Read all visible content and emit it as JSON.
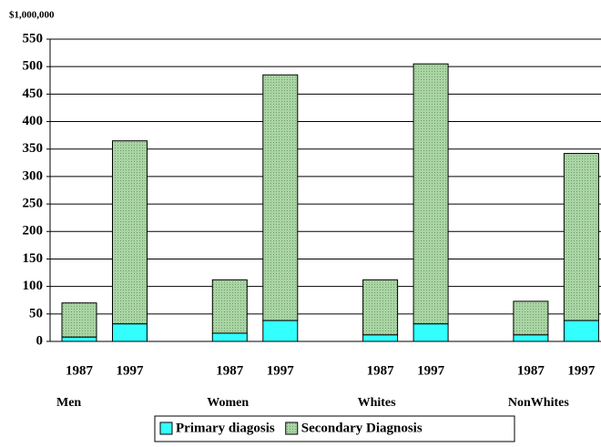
{
  "chart_data": {
    "type": "stacked-bar",
    "y_unit_label": "$1,000,000",
    "categories": [
      "1987",
      "1997",
      "1987",
      "1997",
      "1987",
      "1997",
      "1987",
      "1997"
    ],
    "groups": [
      "Men",
      "Women",
      "Whites",
      "NonWhites"
    ],
    "series": [
      {
        "name": "Primary diagosis",
        "color": "#33ffff",
        "values": [
          8,
          32,
          15,
          38,
          12,
          32,
          12,
          38
        ]
      },
      {
        "name": "Secondary Diagnosis",
        "color": "#a9d4a3",
        "values": [
          62,
          333,
          97,
          447,
          100,
          473,
          61,
          304
        ]
      }
    ],
    "ylim": [
      0,
      550
    ],
    "yticks": [
      0,
      50,
      100,
      150,
      200,
      250,
      300,
      350,
      400,
      450,
      500,
      550
    ],
    "grid": true,
    "legend": "bottom"
  }
}
